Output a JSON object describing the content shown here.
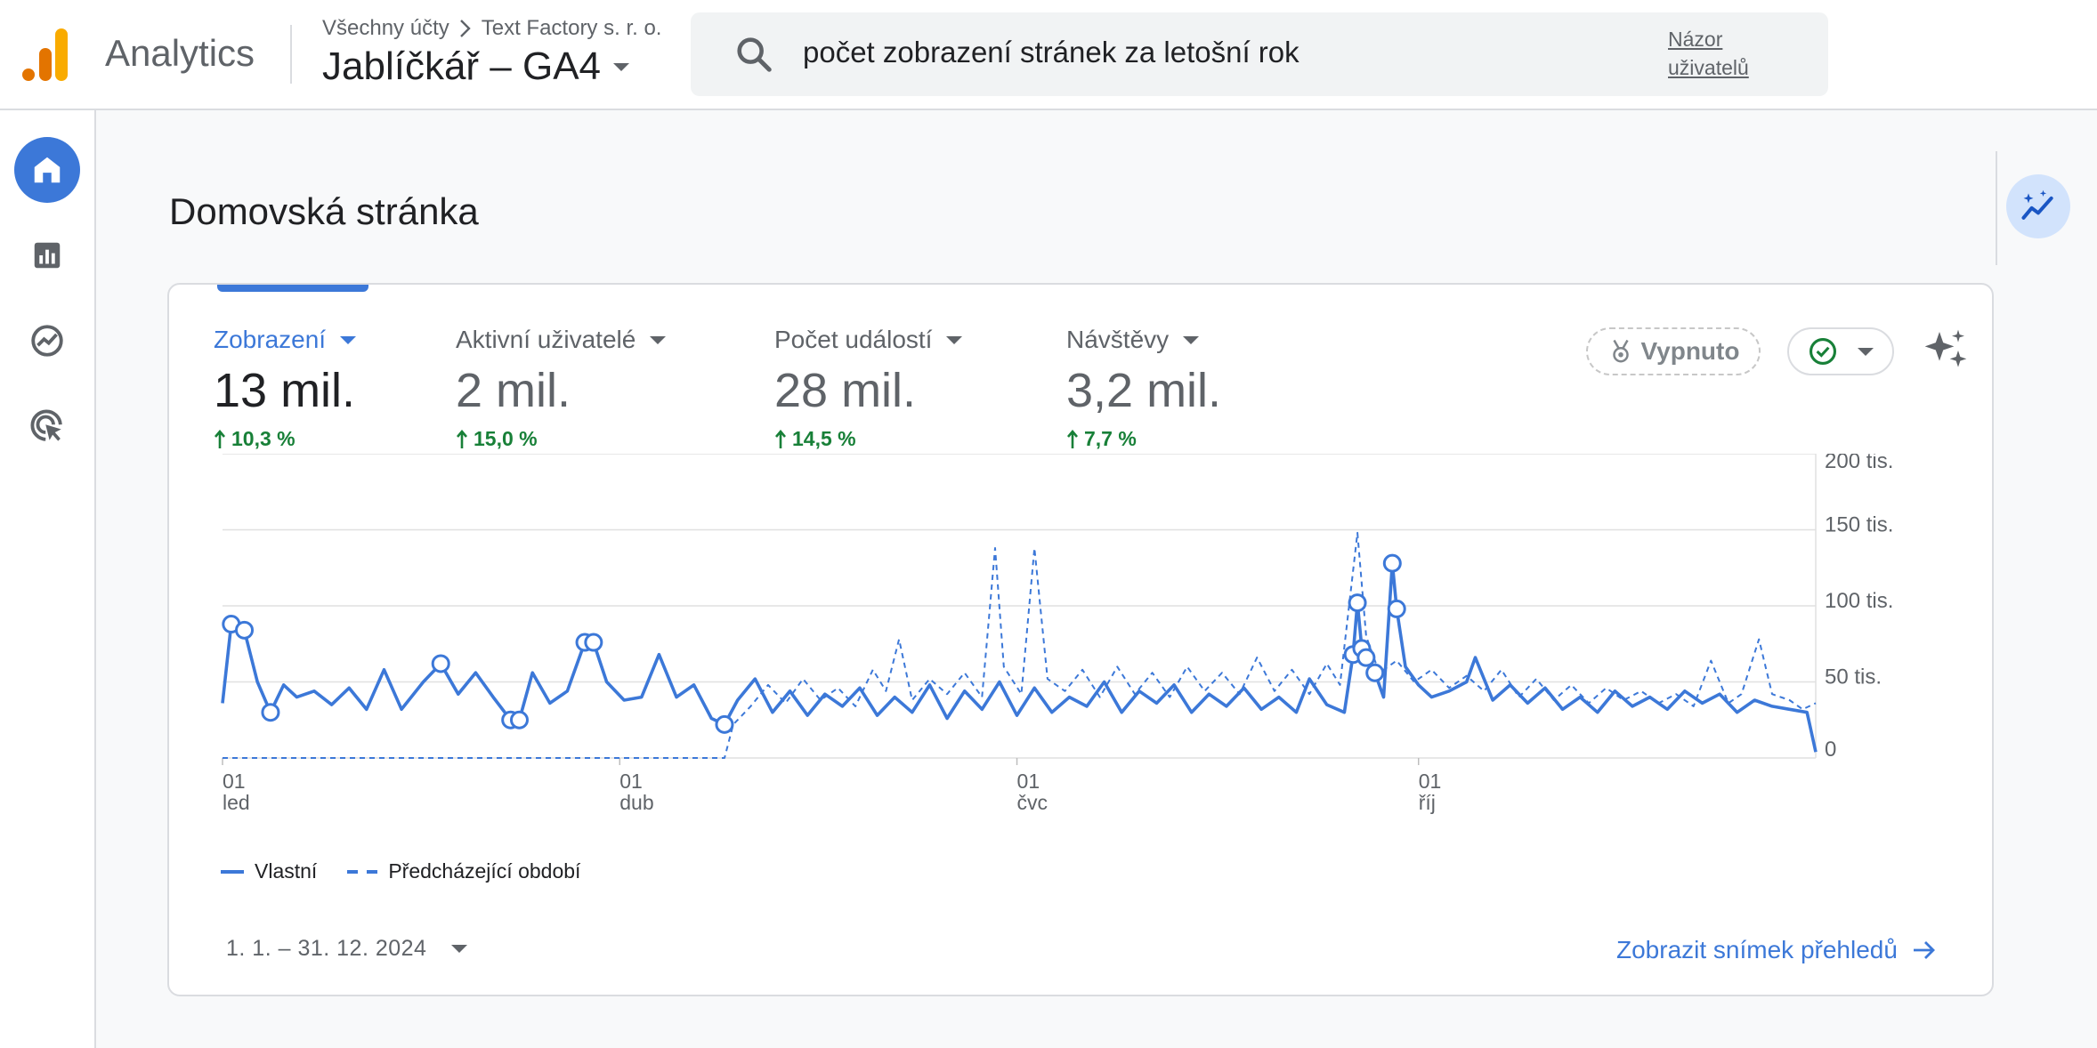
{
  "header": {
    "app_name": "Analytics",
    "breadcrumb": [
      "Všechny účty",
      "Text Factory s. r. o."
    ],
    "property": "Jablíčkář – GA4",
    "search_text": "počet zobrazení stránek za letošní rok",
    "user_view_label": "Názor uživatelů"
  },
  "page_title": "Domovská stránka",
  "metrics": [
    {
      "label": "Zobrazení",
      "value": "13 mil.",
      "change": "10,3 %",
      "active": true
    },
    {
      "label": "Aktivní uživatelé",
      "value": "2 mil.",
      "change": "15,0 %",
      "active": false
    },
    {
      "label": "Počet událostí",
      "value": "28 mil.",
      "change": "14,5 %",
      "active": false
    },
    {
      "label": "Návštěvy",
      "value": "3,2 mil.",
      "change": "7,7 %",
      "active": false
    }
  ],
  "controls": {
    "off_label": "Vypnuto"
  },
  "chart_data": {
    "type": "line",
    "y_ticks": [
      "200 tis.",
      "150 tis.",
      "100 tis.",
      "50 tis.",
      "0"
    ],
    "ylim": [
      0,
      200000
    ],
    "x_ticks": [
      {
        "day": "01",
        "month": "led"
      },
      {
        "day": "01",
        "month": "dub"
      },
      {
        "day": "01",
        "month": "čvc"
      },
      {
        "day": "01",
        "month": "říj"
      }
    ],
    "x_range": [
      "2024-01-01",
      "2024-12-31"
    ],
    "series": [
      {
        "name": "Vlastní",
        "style": "solid",
        "color": "#3c78d8",
        "points": [
          [
            "2024-01-01",
            36000
          ],
          [
            "2024-01-03",
            88000
          ],
          [
            "2024-01-06",
            84000
          ],
          [
            "2024-01-09",
            50000
          ],
          [
            "2024-01-12",
            30000
          ],
          [
            "2024-01-15",
            48000
          ],
          [
            "2024-01-18",
            40000
          ],
          [
            "2024-01-22",
            44000
          ],
          [
            "2024-01-26",
            35000
          ],
          [
            "2024-01-30",
            46000
          ],
          [
            "2024-02-03",
            32000
          ],
          [
            "2024-02-07",
            58000
          ],
          [
            "2024-02-11",
            32000
          ],
          [
            "2024-02-16",
            50000
          ],
          [
            "2024-02-20",
            62000
          ],
          [
            "2024-02-24",
            42000
          ],
          [
            "2024-02-28",
            56000
          ],
          [
            "2024-03-03",
            40000
          ],
          [
            "2024-03-07",
            25000
          ],
          [
            "2024-03-09",
            25000
          ],
          [
            "2024-03-12",
            56000
          ],
          [
            "2024-03-16",
            36000
          ],
          [
            "2024-03-20",
            44000
          ],
          [
            "2024-03-24",
            76000
          ],
          [
            "2024-03-26",
            76000
          ],
          [
            "2024-03-29",
            50000
          ],
          [
            "2024-04-02",
            38000
          ],
          [
            "2024-04-06",
            40000
          ],
          [
            "2024-04-10",
            68000
          ],
          [
            "2024-04-14",
            40000
          ],
          [
            "2024-04-18",
            48000
          ],
          [
            "2024-04-22",
            26000
          ],
          [
            "2024-04-25",
            22000
          ],
          [
            "2024-04-28",
            38000
          ],
          [
            "2024-05-02",
            52000
          ],
          [
            "2024-05-06",
            30000
          ],
          [
            "2024-05-10",
            44000
          ],
          [
            "2024-05-14",
            28000
          ],
          [
            "2024-05-18",
            42000
          ],
          [
            "2024-05-22",
            34000
          ],
          [
            "2024-05-26",
            46000
          ],
          [
            "2024-05-30",
            28000
          ],
          [
            "2024-06-03",
            40000
          ],
          [
            "2024-06-07",
            30000
          ],
          [
            "2024-06-11",
            48000
          ],
          [
            "2024-06-15",
            26000
          ],
          [
            "2024-06-19",
            44000
          ],
          [
            "2024-06-23",
            32000
          ],
          [
            "2024-06-27",
            50000
          ],
          [
            "2024-07-01",
            28000
          ],
          [
            "2024-07-05",
            46000
          ],
          [
            "2024-07-09",
            30000
          ],
          [
            "2024-07-13",
            40000
          ],
          [
            "2024-07-17",
            34000
          ],
          [
            "2024-07-21",
            50000
          ],
          [
            "2024-07-25",
            30000
          ],
          [
            "2024-07-29",
            44000
          ],
          [
            "2024-08-02",
            36000
          ],
          [
            "2024-08-06",
            48000
          ],
          [
            "2024-08-10",
            30000
          ],
          [
            "2024-08-14",
            42000
          ],
          [
            "2024-08-18",
            34000
          ],
          [
            "2024-08-22",
            46000
          ],
          [
            "2024-08-26",
            32000
          ],
          [
            "2024-08-30",
            40000
          ],
          [
            "2024-09-03",
            30000
          ],
          [
            "2024-09-06",
            52000
          ],
          [
            "2024-09-10",
            35000
          ],
          [
            "2024-09-14",
            30000
          ],
          [
            "2024-09-16",
            68000
          ],
          [
            "2024-09-17",
            102000
          ],
          [
            "2024-09-18",
            72000
          ],
          [
            "2024-09-19",
            66000
          ],
          [
            "2024-09-21",
            56000
          ],
          [
            "2024-09-23",
            40000
          ],
          [
            "2024-09-25",
            128000
          ],
          [
            "2024-09-26",
            98000
          ],
          [
            "2024-09-28",
            60000
          ],
          [
            "2024-10-01",
            48000
          ],
          [
            "2024-10-04",
            40000
          ],
          [
            "2024-10-08",
            44000
          ],
          [
            "2024-10-12",
            50000
          ],
          [
            "2024-10-14",
            66000
          ],
          [
            "2024-10-18",
            38000
          ],
          [
            "2024-10-22",
            48000
          ],
          [
            "2024-10-26",
            36000
          ],
          [
            "2024-10-30",
            46000
          ],
          [
            "2024-11-03",
            32000
          ],
          [
            "2024-11-07",
            40000
          ],
          [
            "2024-11-11",
            30000
          ],
          [
            "2024-11-15",
            44000
          ],
          [
            "2024-11-19",
            34000
          ],
          [
            "2024-11-23",
            40000
          ],
          [
            "2024-11-27",
            32000
          ],
          [
            "2024-12-01",
            44000
          ],
          [
            "2024-12-05",
            36000
          ],
          [
            "2024-12-09",
            42000
          ],
          [
            "2024-12-13",
            30000
          ],
          [
            "2024-12-17",
            38000
          ],
          [
            "2024-12-21",
            34000
          ],
          [
            "2024-12-25",
            32000
          ],
          [
            "2024-12-29",
            30000
          ],
          [
            "2024-12-31",
            4000
          ]
        ],
        "highlights": [
          "2024-01-03",
          "2024-01-06",
          "2024-01-12",
          "2024-02-20",
          "2024-03-07",
          "2024-03-09",
          "2024-03-24",
          "2024-03-26",
          "2024-04-25",
          "2024-09-16",
          "2024-09-17",
          "2024-09-18",
          "2024-09-19",
          "2024-09-21",
          "2024-09-25",
          "2024-09-26"
        ]
      },
      {
        "name": "Předcházející období",
        "style": "dashed",
        "color": "#3c78d8",
        "points": [
          [
            "2024-01-01",
            0
          ],
          [
            "2024-04-25",
            0
          ],
          [
            "2024-04-27",
            22000
          ],
          [
            "2024-05-01",
            34000
          ],
          [
            "2024-05-05",
            48000
          ],
          [
            "2024-05-09",
            36000
          ],
          [
            "2024-05-13",
            52000
          ],
          [
            "2024-05-17",
            38000
          ],
          [
            "2024-05-21",
            46000
          ],
          [
            "2024-05-25",
            34000
          ],
          [
            "2024-05-29",
            58000
          ],
          [
            "2024-06-01",
            44000
          ],
          [
            "2024-06-04",
            78000
          ],
          [
            "2024-06-07",
            38000
          ],
          [
            "2024-06-11",
            52000
          ],
          [
            "2024-06-15",
            42000
          ],
          [
            "2024-06-19",
            56000
          ],
          [
            "2024-06-23",
            40000
          ],
          [
            "2024-06-26",
            138000
          ],
          [
            "2024-06-28",
            60000
          ],
          [
            "2024-07-02",
            42000
          ],
          [
            "2024-07-05",
            138000
          ],
          [
            "2024-07-08",
            52000
          ],
          [
            "2024-07-12",
            44000
          ],
          [
            "2024-07-16",
            58000
          ],
          [
            "2024-07-20",
            40000
          ],
          [
            "2024-07-24",
            60000
          ],
          [
            "2024-07-28",
            42000
          ],
          [
            "2024-08-01",
            56000
          ],
          [
            "2024-08-05",
            40000
          ],
          [
            "2024-08-09",
            60000
          ],
          [
            "2024-08-13",
            44000
          ],
          [
            "2024-08-17",
            56000
          ],
          [
            "2024-08-21",
            42000
          ],
          [
            "2024-08-25",
            66000
          ],
          [
            "2024-08-29",
            44000
          ],
          [
            "2024-09-02",
            58000
          ],
          [
            "2024-09-06",
            42000
          ],
          [
            "2024-09-10",
            62000
          ],
          [
            "2024-09-13",
            48000
          ],
          [
            "2024-09-17",
            148000
          ],
          [
            "2024-09-19",
            80000
          ],
          [
            "2024-09-22",
            56000
          ],
          [
            "2024-09-26",
            64000
          ],
          [
            "2024-09-30",
            50000
          ],
          [
            "2024-10-04",
            58000
          ],
          [
            "2024-10-08",
            46000
          ],
          [
            "2024-10-12",
            54000
          ],
          [
            "2024-10-16",
            44000
          ],
          [
            "2024-10-20",
            58000
          ],
          [
            "2024-10-24",
            40000
          ],
          [
            "2024-10-28",
            52000
          ],
          [
            "2024-11-01",
            38000
          ],
          [
            "2024-11-05",
            48000
          ],
          [
            "2024-11-09",
            36000
          ],
          [
            "2024-11-13",
            46000
          ],
          [
            "2024-11-17",
            38000
          ],
          [
            "2024-11-21",
            44000
          ],
          [
            "2024-11-25",
            36000
          ],
          [
            "2024-11-29",
            42000
          ],
          [
            "2024-12-03",
            34000
          ],
          [
            "2024-12-07",
            64000
          ],
          [
            "2024-12-11",
            36000
          ],
          [
            "2024-12-14",
            42000
          ],
          [
            "2024-12-18",
            78000
          ],
          [
            "2024-12-21",
            42000
          ],
          [
            "2024-12-25",
            38000
          ],
          [
            "2024-12-28",
            32000
          ],
          [
            "2024-12-31",
            36000
          ]
        ]
      }
    ],
    "legend": [
      "Vlastní",
      "Předcházející období"
    ],
    "grid": true
  },
  "footer": {
    "date_range": "1. 1. – 31. 12. 2024",
    "snapshot_link": "Zobrazit snímek přehledů"
  }
}
